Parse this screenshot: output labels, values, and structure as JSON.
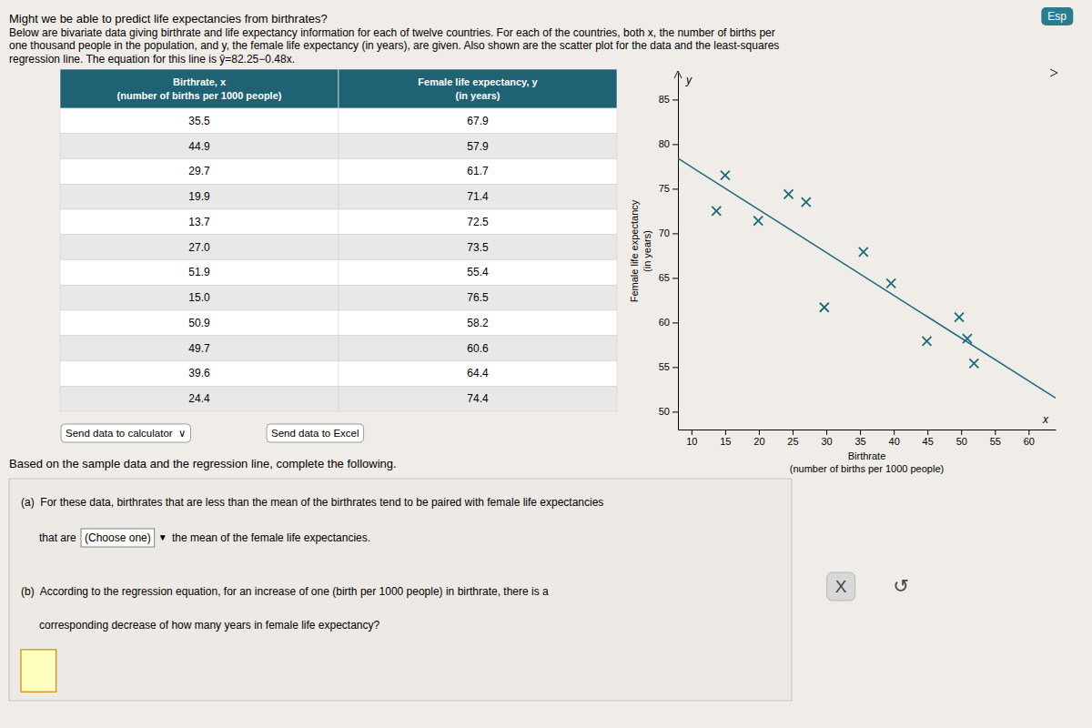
{
  "chart_data": {
    "type": "scatter",
    "title": "Might we be able to predict life expectancies from birthrates?",
    "x_label": "Birthrate\n(number of births per 1000 people)",
    "y_label": "Female life expectancy\n(in years)",
    "series": [
      {
        "type": "scatter",
        "marker": "x",
        "color": "#1a6b7a",
        "x": [
          35.5,
          44.9,
          29.7,
          19.9,
          13.7,
          27.0,
          51.9,
          15.0,
          50.9,
          49.7,
          39.6,
          24.4
        ],
        "values": [
          67.9,
          57.9,
          61.7,
          71.4,
          72.5,
          73.5,
          55.4,
          76.5,
          58.2,
          60.6,
          64.4,
          74.4
        ]
      },
      {
        "type": "line",
        "line_style": "solid",
        "color": "#1a6b7a",
        "x": [
          8,
          64
        ],
        "values": [
          78.41,
          51.53
        ]
      }
    ],
    "xlim": [
      8,
      64
    ],
    "ylim": [
      48,
      88
    ],
    "xticks": [
      10,
      15,
      20,
      25,
      30,
      35,
      40,
      45,
      50,
      55,
      60
    ],
    "yticks": [
      50,
      55,
      60,
      65,
      70,
      75,
      80,
      85
    ],
    "grid": false,
    "annotations": [
      "Esp",
      "Below are bivariate data giving birthrate and life expectancy information for each of twelve countries. For each of the countries, both x, the number of births per",
      "one thousand people in the population, and y, the female life expectancy (in years), are given. Also shown are the scatter plot for the data and the least-squares",
      "regression line. The equation for this line is ",
      "ŷ=82.25−0.48x.",
      "Birthrate, x\n(number of births per 1000 people)",
      "Female life expectancy, y\n(in years)",
      "Send data to calculator  ∨",
      "Send data to Excel",
      "Based on the sample data and the regression line, complete the following.",
      "(a)  For these data, birthrates that are less than the mean of the birthrates tend to be paired with female life expectancies",
      "      that are ",
      "(Choose one)",
      "▼",
      " the mean of the female life expectancies.",
      "(b)  According to the regression equation, for an increase of one (birth per 1000 people) in birthrate, there is a",
      "      corresponding decrease of how many years in female life expectancy?",
      "X",
      "↺",
      "y",
      "x"
    ]
  }
}
